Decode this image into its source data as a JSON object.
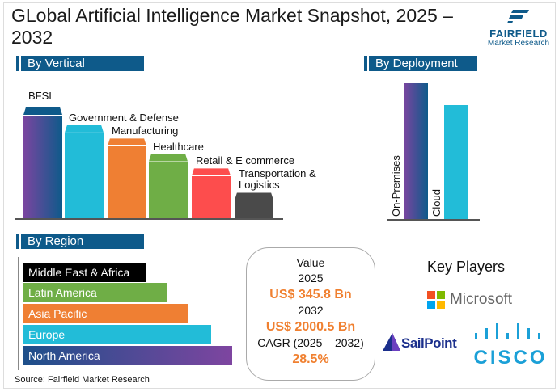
{
  "title": "GLobal Artificial Intelligence Market Snapshot, 2025 – 2032",
  "logo": {
    "brand": "FAIRFIELD",
    "sub": "Market Research"
  },
  "sections": {
    "vertical": "By Vertical",
    "deployment": "By Deployment",
    "region": "By Region"
  },
  "chart_data": [
    {
      "type": "bar",
      "title": "By Vertical",
      "categories": [
        "BFSI",
        "Government & Defense",
        "Manufacturing",
        "Healthcare",
        "Retail & E commerce",
        "Transportation & Logistics"
      ],
      "label_lines": [
        [
          "BFSI"
        ],
        [
          "Government & Defense"
        ],
        [
          "Manufacturing"
        ],
        [
          "Healthcare"
        ],
        [
          "Retail & E commerce"
        ],
        [
          "Transportation &",
          "Logistics"
        ]
      ],
      "values": [
        100,
        84,
        72,
        58,
        45,
        23
      ],
      "colors": [
        "#0e5a8a",
        "#22bcd8",
        "#ef7f33",
        "#6fae46",
        "#fd4d4d",
        "#4a4a4a"
      ]
    },
    {
      "type": "bar",
      "title": "By Deployment",
      "categories": [
        "On-Premises",
        "Cloud"
      ],
      "values": [
        100,
        84
      ],
      "colors": [
        "#0e5a8a",
        "#22bcd8"
      ]
    },
    {
      "type": "bar",
      "orientation": "horizontal",
      "title": "By Region",
      "categories": [
        "Middle East & Africa",
        "Latin America",
        "Asia Pacific",
        "Europe",
        "North America"
      ],
      "values": [
        59,
        69,
        79,
        90,
        100
      ],
      "colors": [
        "#000000",
        "#6fae46",
        "#ef7f33",
        "#22bcd8",
        "#1d4f8a"
      ]
    }
  ],
  "summary": {
    "value_label": "Value",
    "year1": "2025",
    "value1": "US$ 345.8 Bn",
    "year2": "2032",
    "value2": "US$ 2000.5 Bn",
    "cagr_label": "CAGR (2025 – 2032)",
    "cagr": "28.5%",
    "accent": "#f08030"
  },
  "key_players": {
    "title": "Key Players",
    "players": [
      "Microsoft",
      "SailPoint",
      "CISCO"
    ]
  },
  "source": "Source: Fairfield Market Research"
}
